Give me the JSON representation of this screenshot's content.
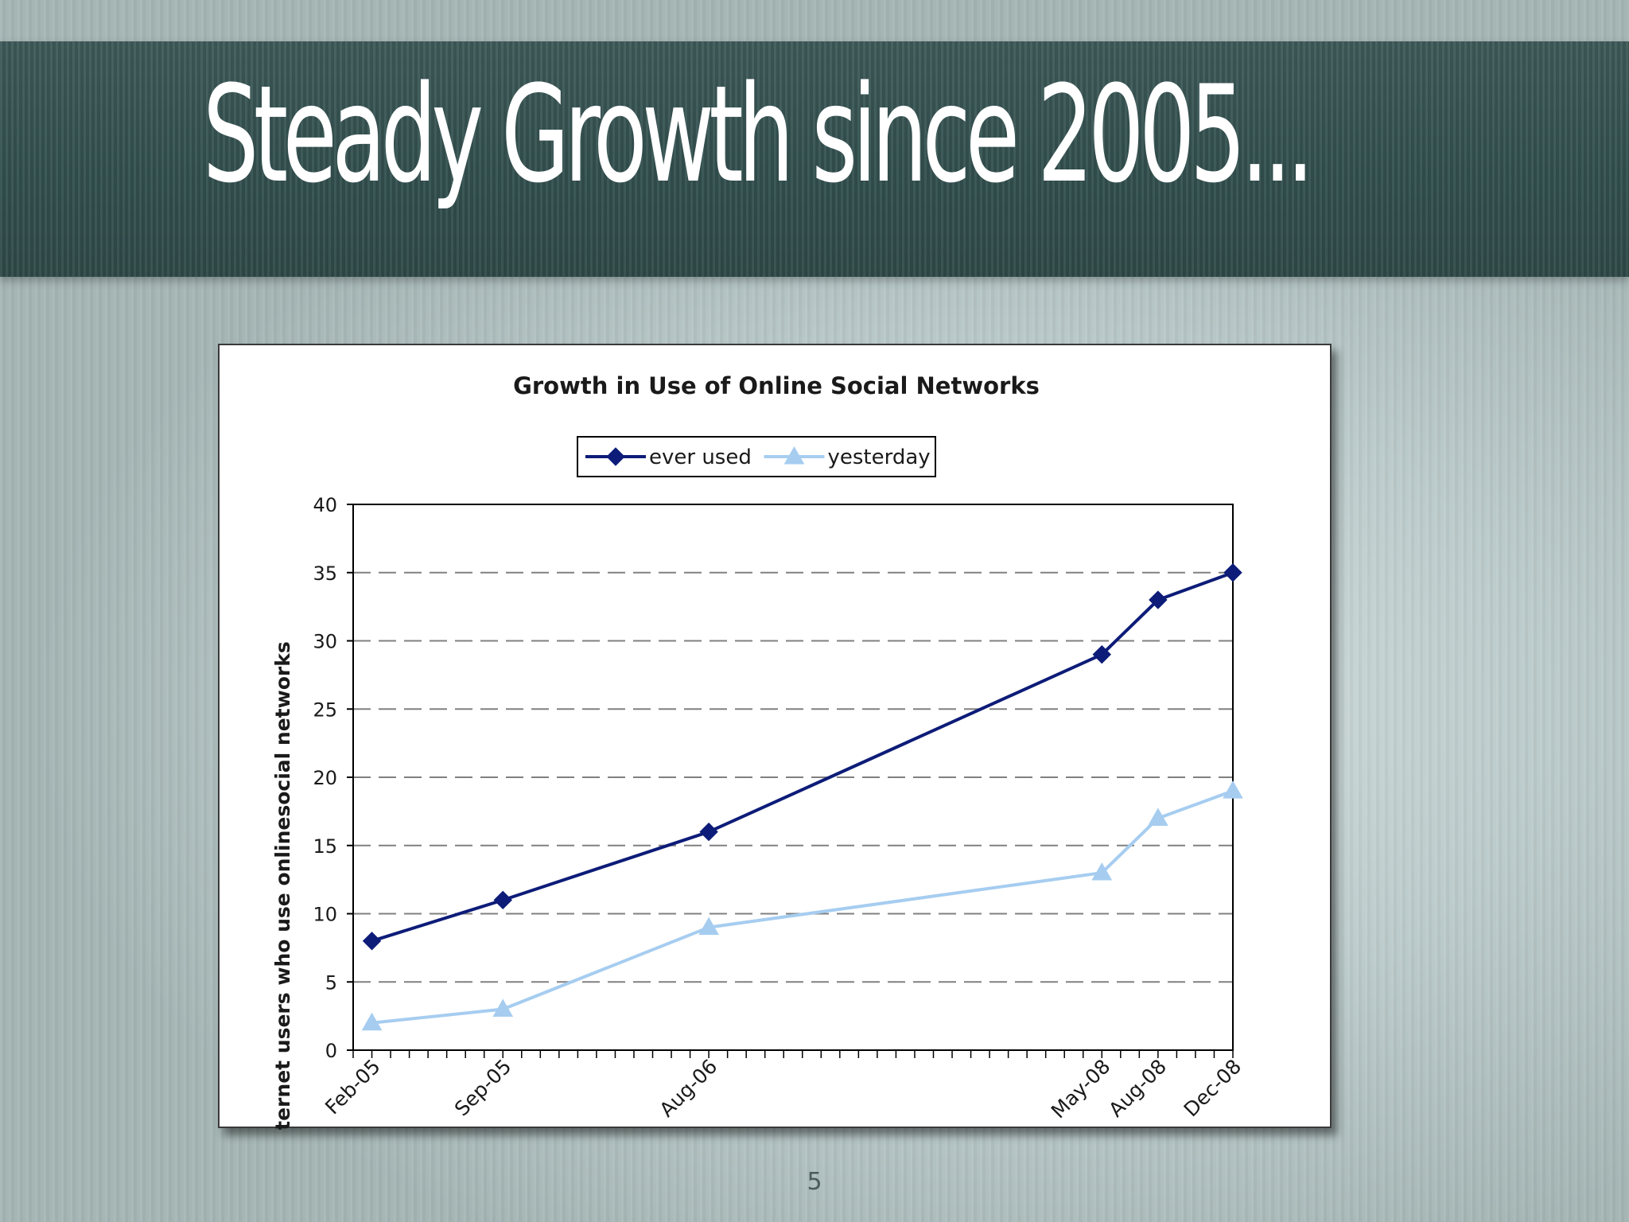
{
  "slide": {
    "title": "Steady Growth since 2005...",
    "page_number": "5"
  },
  "chart_data": {
    "type": "line",
    "title": "Growth in Use of Online Social Networks",
    "xlabel": "",
    "ylabel": "% of internet users who use onlinesocial networks",
    "ylim": [
      0,
      40
    ],
    "yticks": [
      0,
      5,
      10,
      15,
      20,
      25,
      30,
      35,
      40
    ],
    "grid": "horizontal dashed",
    "legend_position": "top",
    "x_dates": [
      "2005-02",
      "2005-09",
      "2006-08",
      "2008-05",
      "2008-08",
      "2008-12"
    ],
    "x_range": [
      "2005-01",
      "2008-12"
    ],
    "categories": [
      "Feb-05",
      "Sep-05",
      "Aug-06",
      "May-08",
      "Aug-08",
      "Dec-08"
    ],
    "series": [
      {
        "name": "ever used",
        "values": [
          8,
          11,
          16,
          29,
          33,
          35
        ],
        "color": "#0d1c78",
        "marker": "diamond"
      },
      {
        "name": "yesterday",
        "values": [
          2,
          3,
          9,
          13,
          17,
          19
        ],
        "color": "#a6cdf0",
        "marker": "triangle"
      }
    ]
  }
}
